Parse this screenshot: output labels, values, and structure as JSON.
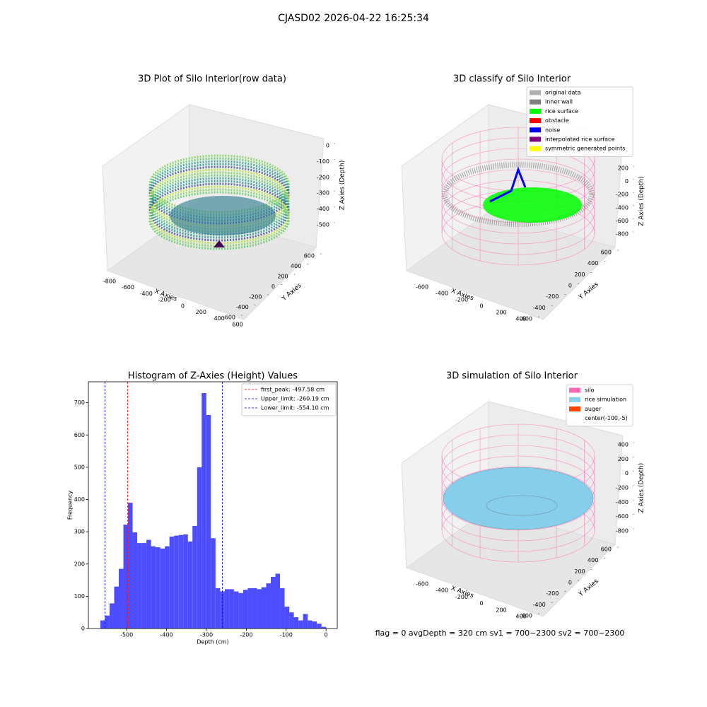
{
  "suptitle": "CJASD02 2026-04-22 16:25:34",
  "footer": "flag = 0    avgDepth = 320 cm  sv1 = 700~2300  sv2 = 700~2300",
  "chart_data": [
    {
      "type": "scatter3d",
      "title": "3D Plot of Silo Interior(row data)",
      "xlabel": "X Axies",
      "ylabel": "Y Axies",
      "zlabel": "Z Axies (Depth)",
      "xlim": [
        -800,
        600
      ],
      "xticks": [
        -800,
        -600,
        -400,
        -200,
        0,
        200,
        400,
        600
      ],
      "ylim": [
        -600,
        600
      ],
      "yticks": [
        -600,
        -400,
        -200,
        0,
        200,
        400,
        600
      ],
      "zlim": [
        -500,
        0
      ],
      "zticks": [
        -500,
        -400,
        -300,
        -200,
        -100,
        0
      ]
    },
    {
      "type": "scatter3d",
      "title": "3D classify of Silo Interior",
      "xlabel": "X Axies",
      "ylabel": "Y Axies",
      "zlabel": "Z Axies (Depth)",
      "xlim": [
        -600,
        400
      ],
      "xticks": [
        -600,
        -400,
        -200,
        0,
        200,
        400
      ],
      "ylim": [
        -600,
        600
      ],
      "yticks": [
        -600,
        -400,
        -200,
        0,
        200,
        400,
        600
      ],
      "zlim": [
        -800,
        200
      ],
      "zticks": [
        -800,
        -600,
        -400,
        -200,
        0,
        200
      ],
      "legend": [
        {
          "name": "original data",
          "color": "#b0b0b0"
        },
        {
          "name": "inner wall",
          "color": "#808080"
        },
        {
          "name": "rice surface",
          "color": "#00ff00"
        },
        {
          "name": "obstacle",
          "color": "#ff0000"
        },
        {
          "name": "noise",
          "color": "#0000ff"
        },
        {
          "name": "interpolated rice surface",
          "color": "#800080"
        },
        {
          "name": "symmetric generated points",
          "color": "#ffff00"
        }
      ]
    },
    {
      "type": "hist",
      "title": "Histogram of Z-Axies (Height) Values",
      "xlabel": "Depth (cm)",
      "ylabel": "Frequency",
      "color": "#4d4dff",
      "bins": [
        -566,
        -554.4,
        -542.9,
        -531.3,
        -519.8,
        -508.2,
        -496.7,
        -485.1,
        -473.6,
        -462.0,
        -450.5,
        -438.9,
        -427.4,
        -415.8,
        -404.3,
        -392.7,
        -381.2,
        -369.6,
        -358.1,
        -346.5,
        -335.0,
        -323.4,
        -311.9,
        -300.3,
        -288.8,
        -277.2,
        -265.7,
        -254.1,
        -242.6,
        -231.0,
        -219.5,
        -207.9,
        -196.4,
        -184.8,
        -173.3,
        -161.7,
        -150.2,
        -138.6,
        -127.1,
        -115.5,
        -104.0,
        -92.4,
        -80.9,
        -69.3,
        -57.8,
        -46.2,
        -34.7,
        -23.1,
        -11.6,
        0
      ],
      "counts": [
        25,
        40,
        78,
        130,
        185,
        322,
        390,
        298,
        265,
        265,
        275,
        255,
        252,
        248,
        255,
        285,
        288,
        290,
        292,
        270,
        318,
        500,
        730,
        662,
        280,
        125,
        115,
        122,
        122,
        115,
        110,
        120,
        125,
        125,
        122,
        128,
        140,
        160,
        170,
        125,
        68,
        50,
        35,
        25,
        45,
        25,
        22,
        15,
        5
      ],
      "xlim": [
        -596,
        28
      ],
      "xticks": [
        -500,
        -400,
        -300,
        -200,
        -100,
        0
      ],
      "ylim": [
        0,
        765
      ],
      "yticks": [
        0,
        100,
        200,
        300,
        400,
        500,
        600,
        700
      ],
      "vlines": [
        {
          "value": -497.58,
          "label": "first_peak: -497.58 cm",
          "color": "#ff0000"
        },
        {
          "value": -260.19,
          "label": "Upper_limit: -260.19 cm",
          "color": "#0000ff"
        },
        {
          "value": -554.1,
          "label": "Lower_limit: -554.10 cm",
          "color": "#0000ff"
        }
      ]
    },
    {
      "type": "surface3d",
      "title": "3D simulation of Silo Interior",
      "xlabel": "X Axies",
      "ylabel": "Y Axies",
      "zlabel": "Z Axies (Depth)",
      "xlim": [
        -600,
        400
      ],
      "xticks": [
        -600,
        -400,
        -200,
        0,
        200,
        400
      ],
      "ylim": [
        -600,
        600
      ],
      "yticks": [
        -600,
        -400,
        -200,
        0,
        200,
        400,
        600
      ],
      "zlim": [
        -800,
        400
      ],
      "zticks": [
        -800,
        -600,
        -400,
        -200,
        0,
        200,
        400
      ],
      "legend": [
        {
          "name": "silo",
          "color": "#ff69b4"
        },
        {
          "name": "rice simulation",
          "color": "#87ceeb"
        },
        {
          "name": "auger",
          "color": "#ff4500"
        },
        {
          "name": "center(-100,-5)"
        }
      ]
    }
  ]
}
